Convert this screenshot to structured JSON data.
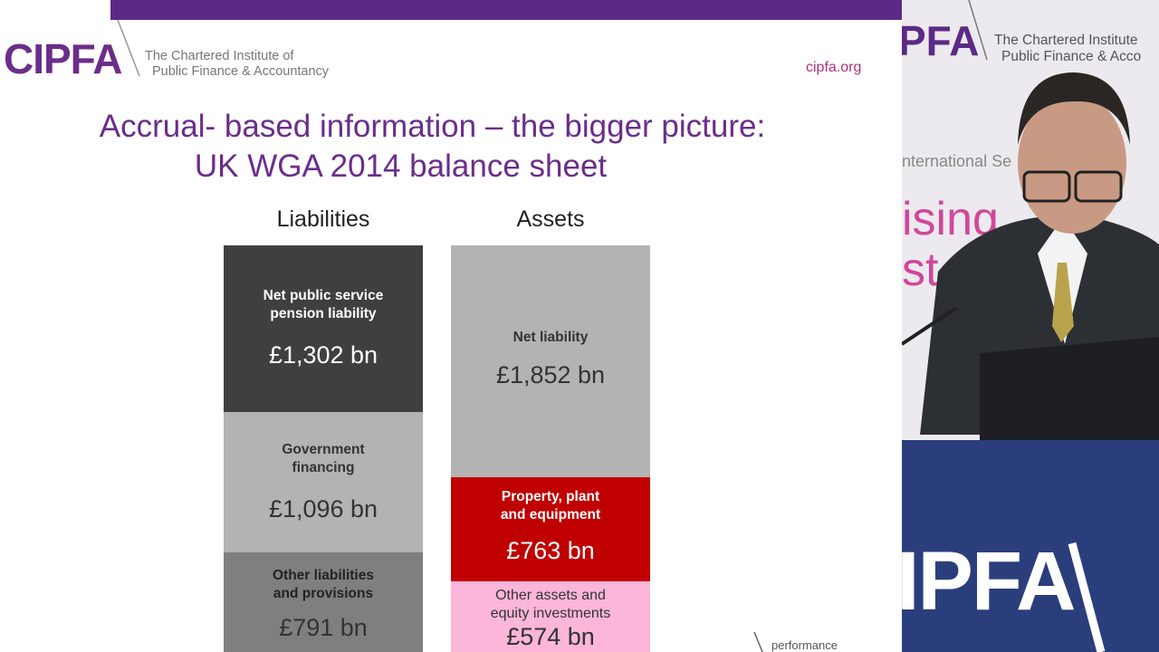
{
  "slide": {
    "logo": "CIPFA",
    "org_full": [
      "The Chartered Institute of",
      "Public Finance & Accountancy"
    ],
    "url": "cipfa.org",
    "title": [
      "Accrual- based information – the bigger picture:",
      "UK WGA 2014 balance sheet"
    ],
    "columns": [
      {
        "heading": "Liabilities",
        "blocks": [
          {
            "label": [
              "Net public service",
              "pension liability"
            ],
            "amount": "£1,302 bn"
          },
          {
            "label": [
              "Government",
              "financing"
            ],
            "amount": "£1,096 bn"
          },
          {
            "label": [
              "Other liabilities",
              "and provisions"
            ],
            "amount": "£791 bn"
          }
        ]
      },
      {
        "heading": "Assets",
        "blocks": [
          {
            "label": [
              "Net liability"
            ],
            "amount": "£1,852 bn"
          },
          {
            "label": [
              "Property, plant",
              "and equipment"
            ],
            "amount": "£763 bn"
          },
          {
            "label": [
              "Other assets and",
              "equity investments"
            ],
            "amount": "£574 bn"
          }
        ]
      }
    ],
    "footer": "performance"
  },
  "backdrop": {
    "logo": "PFA",
    "org_full": [
      "The Chartered Institute",
      "Public Finance & Acco"
    ],
    "event": "nternational Se",
    "banner": [
      "ising",
      "st"
    ],
    "podium": "IPFA"
  }
}
